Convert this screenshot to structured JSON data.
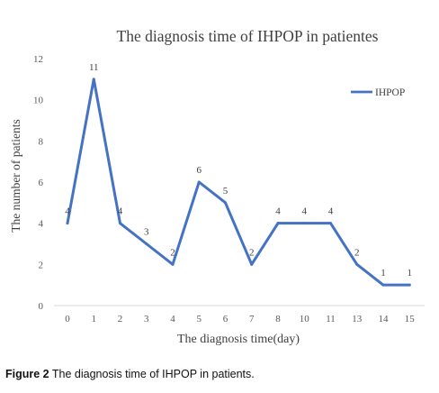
{
  "chart_data": {
    "type": "line",
    "title": "The diagnosis time of IHPOP in patientes",
    "xlabel": "The diagnosis time(day)",
    "ylabel": "The number of patients",
    "categories": [
      "0",
      "1",
      "2",
      "3",
      "4",
      "5",
      "6",
      "7",
      "8",
      "10",
      "11",
      "13",
      "14",
      "15"
    ],
    "series": [
      {
        "name": "IHPOP",
        "values": [
          4,
          11,
          4,
          3,
          2,
          6,
          5,
          2,
          4,
          4,
          4,
          2,
          1,
          1
        ],
        "color": "#4472C4"
      }
    ],
    "data_labels": [
      "4",
      "11",
      "4",
      "3",
      "2",
      "6",
      "5",
      "2",
      "4",
      "4",
      "4",
      "2",
      "1",
      "1"
    ],
    "ylim": [
      0,
      12
    ],
    "yticks": [
      "0",
      "2",
      "4",
      "6",
      "8",
      "10",
      "12"
    ],
    "grid": false,
    "legend": "top-right"
  },
  "caption": {
    "label": "Figure 2",
    "text": " The diagnosis time of IHPOP in patients."
  }
}
